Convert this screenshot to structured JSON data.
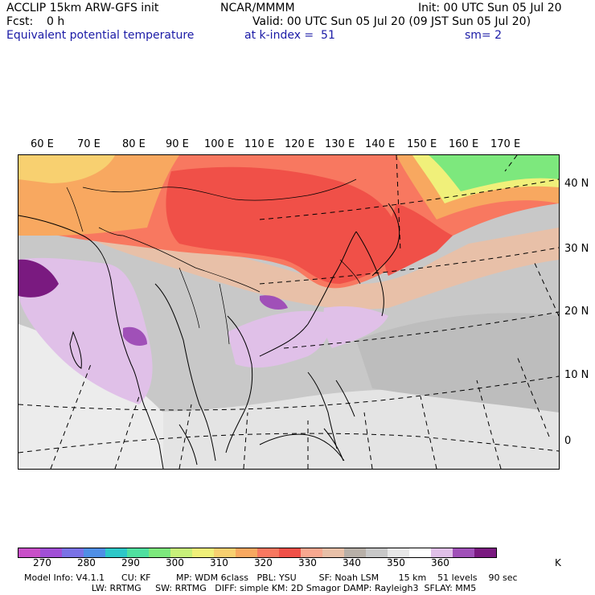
{
  "header": {
    "model": "ACCLIP 15km ARW-GFS init",
    "center": "NCAR/MMMM",
    "init": "Init: 00 UTC Sun 05 Jul 20",
    "fcst_label": "Fcst:",
    "fcst_value": "0 h",
    "valid": "Valid: 00 UTC Sun 05 Jul 20 (09 JST Sun 05 Jul 20)",
    "field": "Equivalent potential temperature",
    "level": "at k-index =  51",
    "smooth": "sm= 2"
  },
  "map": {
    "lon_labels": [
      "60 E",
      "70 E",
      "80 E",
      "90 E",
      "100 E",
      "110 E",
      "120 E",
      "130 E",
      "140 E",
      "150 E",
      "160 E",
      "170 E"
    ],
    "lat_labels": [
      "40 N",
      "30 N",
      "20 N",
      "10 N",
      "0"
    ]
  },
  "colorbar": {
    "colors": [
      "#c84fc8",
      "#a14fd6",
      "#7a72e6",
      "#4f8fe6",
      "#2ec8c8",
      "#4fe0a0",
      "#7de87d",
      "#c8f07a",
      "#f0f07a",
      "#f8d070",
      "#f8a860",
      "#f87860",
      "#f05048",
      "#f8a890",
      "#e8c0a8",
      "#b8b0a8",
      "#c8c8c8",
      "#e8e8e8",
      "#ffffff",
      "#e0c0e8",
      "#a050b8",
      "#7a1a80"
    ],
    "labels": [
      "270",
      "280",
      "290",
      "300",
      "310",
      "320",
      "330",
      "340",
      "350",
      "360"
    ],
    "unit": "K"
  },
  "footer": {
    "line1": "Model Info: V4.1.1      CU: KF         MP: WDM 6class   PBL: YSU        SF: Noah LSM       15 km    51 levels    90 sec",
    "line2": "                        LW: RRTMG     SW: RRTMG   DIFF: simple KM: 2D Smagor DAMP: Rayleigh3  SFLAY: MM5"
  }
}
